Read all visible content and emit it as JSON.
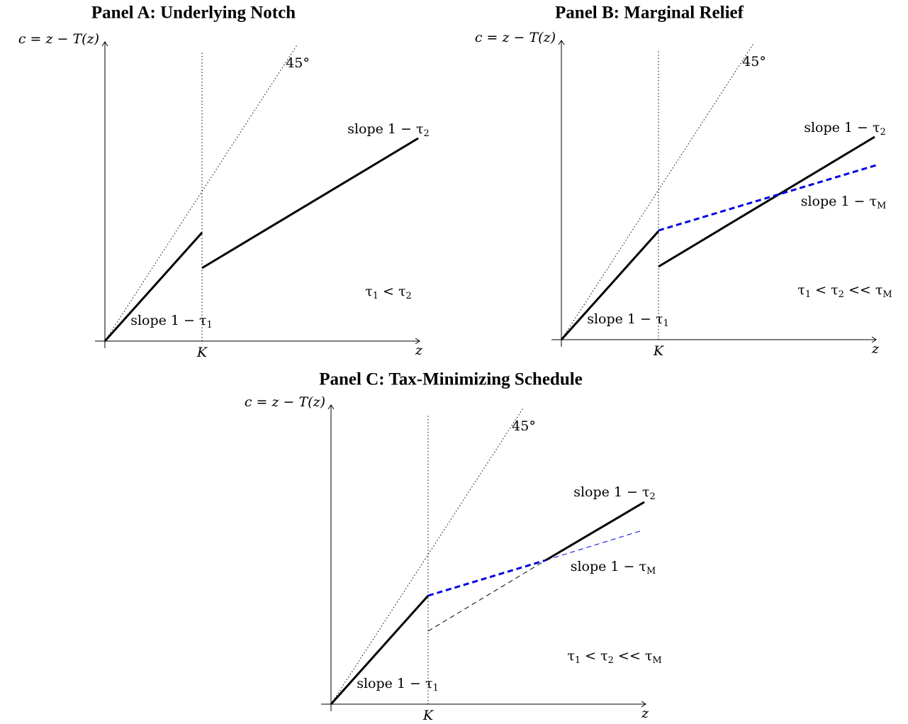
{
  "panels": [
    {
      "title": "Panel A: Underlying Notch",
      "y_label": "c = z − T(z)",
      "angle_label": "45°",
      "k_label": "K",
      "x_label": "z",
      "slope_high": {
        "text": "slope 1 − τ",
        "sub": "2"
      },
      "slope_low": {
        "text": "slope 1 − τ",
        "sub": "1"
      },
      "condition": [
        {
          "text": "τ",
          "sub": "1"
        },
        {
          "text": " < τ",
          "sub": "2"
        }
      ]
    },
    {
      "title": "Panel B: Marginal Relief",
      "y_label": "c = z − T(z)",
      "angle_label": "45°",
      "k_label": "K",
      "x_label": "z",
      "slope_high": {
        "text": "slope 1 − τ",
        "sub": "2"
      },
      "slope_low": {
        "text": "slope 1 − τ",
        "sub": "1"
      },
      "slope_m": {
        "text": "slope 1 − τ",
        "sub": "M"
      },
      "condition": [
        {
          "text": "τ",
          "sub": "1"
        },
        {
          "text": " < τ",
          "sub": "2"
        },
        {
          "text": " << τ",
          "sub": "M"
        }
      ]
    },
    {
      "title": "Panel C: Tax-Minimizing Schedule",
      "y_label": "c = z − T(z)",
      "angle_label": "45°",
      "k_label": "K",
      "x_label": "z",
      "slope_high": {
        "text": "slope 1 − τ",
        "sub": "2"
      },
      "slope_low": {
        "text": "slope 1 − τ",
        "sub": "1"
      },
      "slope_m": {
        "text": "slope 1 − τ",
        "sub": "M"
      },
      "condition": [
        {
          "text": "τ",
          "sub": "1"
        },
        {
          "text": " < τ",
          "sub": "2"
        },
        {
          "text": " << τ",
          "sub": "M"
        }
      ]
    }
  ]
}
